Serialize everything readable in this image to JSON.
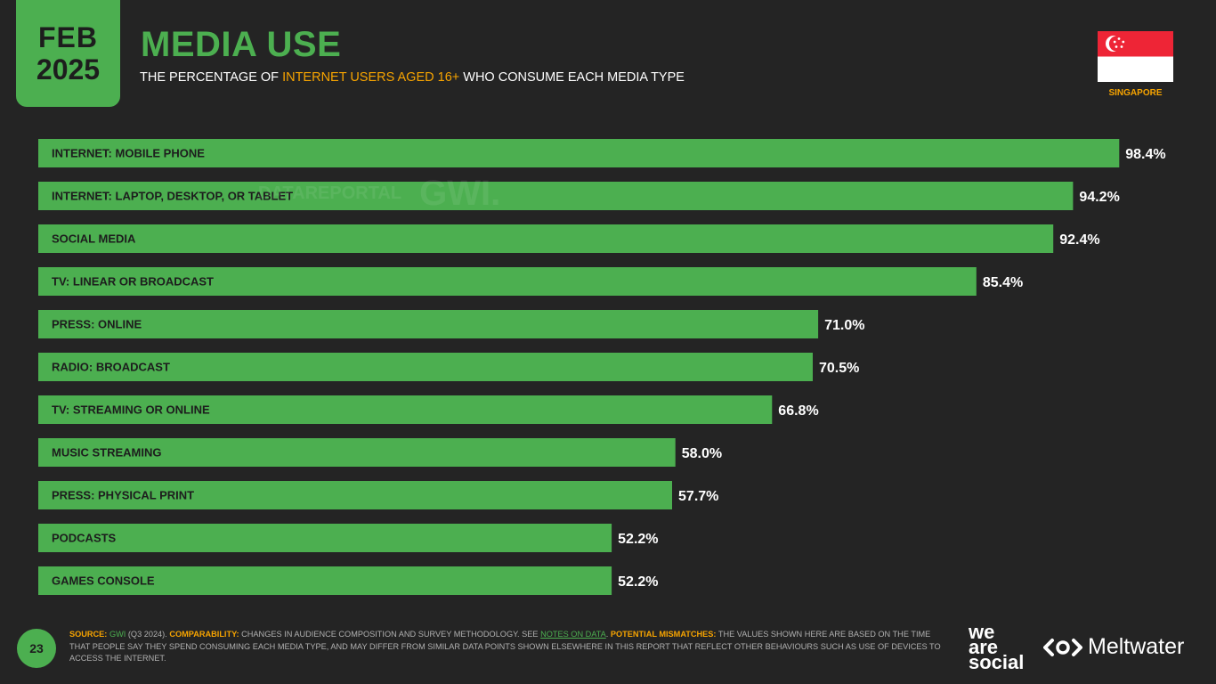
{
  "header": {
    "month": "FEB",
    "year": "2025",
    "title": "MEDIA USE",
    "subtitle_pre": "THE PERCENTAGE OF ",
    "subtitle_highlight": "INTERNET USERS AGED 16+",
    "subtitle_post": " WHO CONSUME EACH MEDIA TYPE",
    "country": "SINGAPORE"
  },
  "watermark": {
    "datareportal": "DATAREPORTAL",
    "gwi": "GWI."
  },
  "colors": {
    "accent": "#4caf50",
    "highlight": "#f7a400",
    "background": "#242424",
    "flag_red": "#ee2536",
    "flag_white": "#ffffff"
  },
  "chart_data": {
    "type": "bar",
    "orientation": "horizontal",
    "title": "MEDIA USE",
    "unit": "%",
    "xlim": [
      0,
      100
    ],
    "categories": [
      "INTERNET: MOBILE PHONE",
      "INTERNET: LAPTOP, DESKTOP, OR TABLET",
      "SOCIAL MEDIA",
      "TV: LINEAR OR BROADCAST",
      "PRESS: ONLINE",
      "RADIO: BROADCAST",
      "TV: STREAMING OR ONLINE",
      "MUSIC STREAMING",
      "PRESS: PHYSICAL PRINT",
      "PODCASTS",
      "GAMES CONSOLE"
    ],
    "values": [
      98.4,
      94.2,
      92.4,
      85.4,
      71.0,
      70.5,
      66.8,
      58.0,
      57.7,
      52.2,
      52.2
    ],
    "value_labels": [
      "98.4%",
      "94.2%",
      "92.4%",
      "85.4%",
      "71.0%",
      "70.5%",
      "66.8%",
      "58.0%",
      "57.7%",
      "52.2%",
      "52.2%"
    ]
  },
  "footer": {
    "page_number": "23",
    "source_label": "SOURCE:",
    "source_link": "GWI",
    "source_text": " (Q3 2024). ",
    "comparability_label": "COMPARABILITY:",
    "comparability_text": " CHANGES IN AUDIENCE COMPOSITION AND SURVEY METHODOLOGY. SEE ",
    "notes_link": "NOTES ON DATA",
    "notes_after": ". ",
    "mismatch_label": "POTENTIAL MISMATCHES:",
    "mismatch_text": " THE VALUES SHOWN HERE ARE BASED ON THE TIME THAT PEOPLE SAY THEY SPEND CONSUMING EACH MEDIA TYPE, AND MAY DIFFER FROM SIMILAR DATA POINTS SHOWN ELSEWHERE IN THIS REPORT THAT REFLECT OTHER BEHAVIOURS SUCH AS USE OF DEVICES TO ACCESS THE INTERNET.",
    "logo_we": "we",
    "logo_are": "are",
    "logo_social": "social",
    "logo_meltwater": "Meltwater"
  }
}
